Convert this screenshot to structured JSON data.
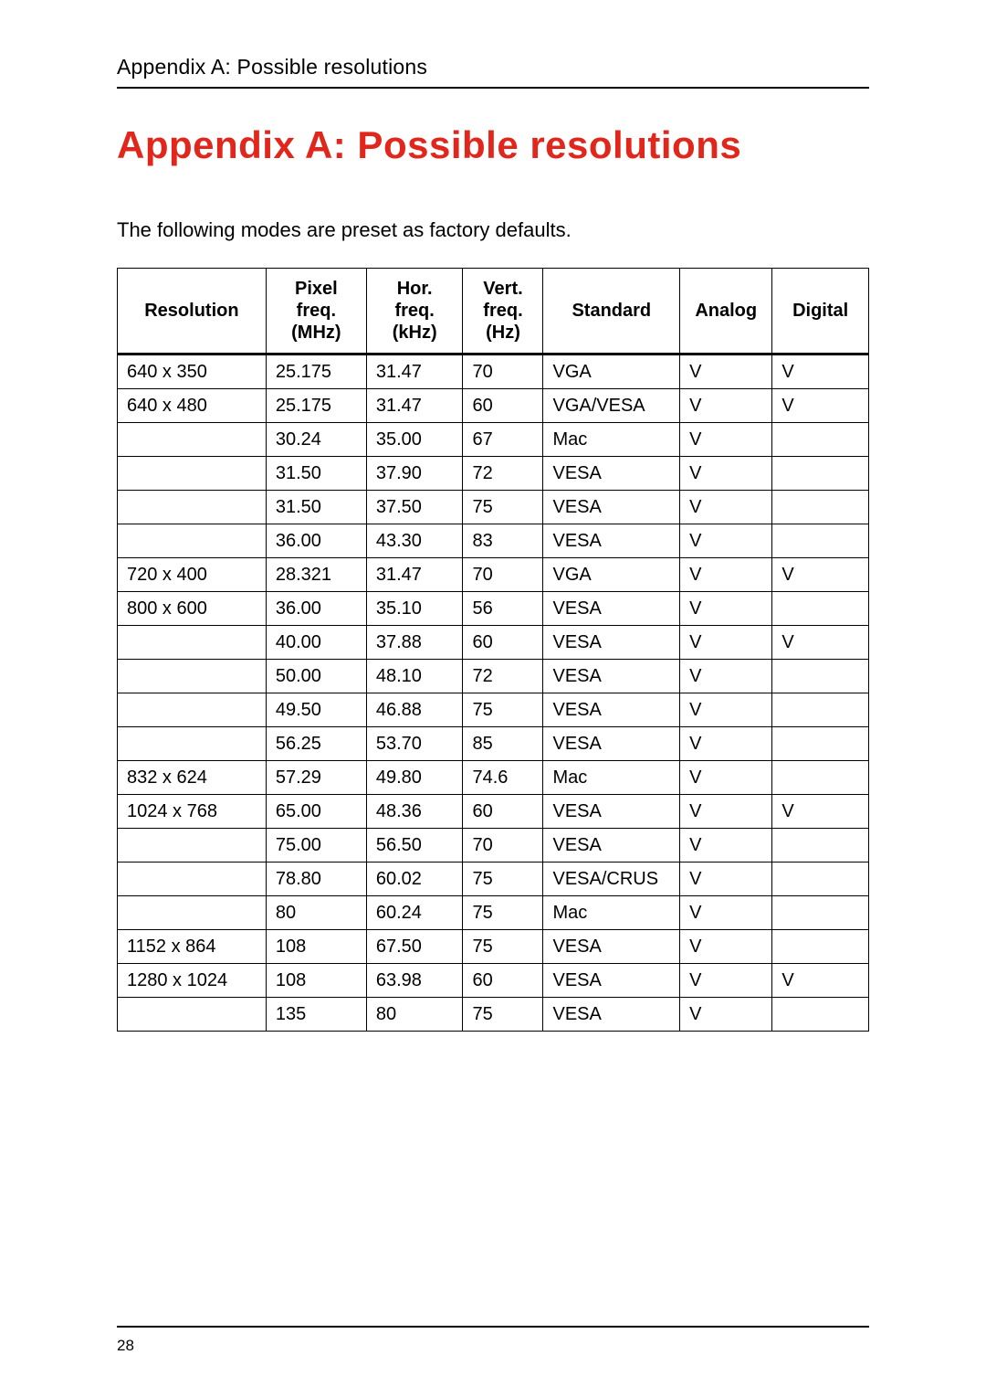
{
  "header": {
    "running_title": "Appendix A: Possible resolutions"
  },
  "title": "Appendix A: Possible resolutions",
  "intro": "The following modes are preset as factory defaults.",
  "table": {
    "columns": [
      {
        "id": "resolution",
        "label_lines": [
          "Resolution"
        ]
      },
      {
        "id": "pixel",
        "label_lines": [
          "Pixel",
          "freq.",
          "(MHz)"
        ]
      },
      {
        "id": "hor",
        "label_lines": [
          "Hor.",
          "freq.",
          "(kHz)"
        ]
      },
      {
        "id": "vert",
        "label_lines": [
          "Vert.",
          "freq.",
          "(Hz)"
        ]
      },
      {
        "id": "standard",
        "label_lines": [
          "Standard"
        ]
      },
      {
        "id": "analog",
        "label_lines": [
          "Analog"
        ]
      },
      {
        "id": "digital",
        "label_lines": [
          "Digital"
        ]
      }
    ],
    "rows": [
      [
        "640 x 350",
        "25.175",
        "31.47",
        "70",
        "VGA",
        "V",
        "V"
      ],
      [
        "640 x 480",
        "25.175",
        "31.47",
        "60",
        "VGA/VESA",
        "V",
        "V"
      ],
      [
        "",
        "30.24",
        "35.00",
        "67",
        "Mac",
        "V",
        ""
      ],
      [
        "",
        "31.50",
        "37.90",
        "72",
        "VESA",
        "V",
        ""
      ],
      [
        "",
        "31.50",
        "37.50",
        "75",
        "VESA",
        "V",
        ""
      ],
      [
        "",
        "36.00",
        "43.30",
        "83",
        "VESA",
        "V",
        ""
      ],
      [
        "720 x 400",
        "28.321",
        "31.47",
        "70",
        "VGA",
        "V",
        "V"
      ],
      [
        "800 x 600",
        "36.00",
        "35.10",
        "56",
        "VESA",
        "V",
        ""
      ],
      [
        "",
        "40.00",
        "37.88",
        "60",
        "VESA",
        "V",
        "V"
      ],
      [
        "",
        "50.00",
        "48.10",
        "72",
        "VESA",
        "V",
        ""
      ],
      [
        "",
        "49.50",
        "46.88",
        "75",
        "VESA",
        "V",
        ""
      ],
      [
        "",
        "56.25",
        "53.70",
        "85",
        "VESA",
        "V",
        ""
      ],
      [
        "832 x 624",
        "57.29",
        "49.80",
        "74.6",
        "Mac",
        "V",
        ""
      ],
      [
        "1024 x 768",
        "65.00",
        "48.36",
        "60",
        "VESA",
        "V",
        "V"
      ],
      [
        "",
        "75.00",
        "56.50",
        "70",
        "VESA",
        "V",
        ""
      ],
      [
        "",
        "78.80",
        "60.02",
        "75",
        "VESA/CRUS",
        "V",
        ""
      ],
      [
        "",
        "80",
        "60.24",
        "75",
        "Mac",
        "V",
        ""
      ],
      [
        "1152 x 864",
        "108",
        "67.50",
        "75",
        "VESA",
        "V",
        ""
      ],
      [
        "1280 x 1024",
        "108",
        "63.98",
        "60",
        "VESA",
        "V",
        "V"
      ],
      [
        "",
        "135",
        "80",
        "75",
        "VESA",
        "V",
        ""
      ]
    ]
  },
  "footer": {
    "page_number": "28"
  },
  "style": {
    "accent_color": "#e1261c",
    "text_color": "#000000",
    "background_color": "#ffffff",
    "table_border_color": "#000000",
    "header_fontsize_pt": 32,
    "body_fontsize_pt": 16
  }
}
